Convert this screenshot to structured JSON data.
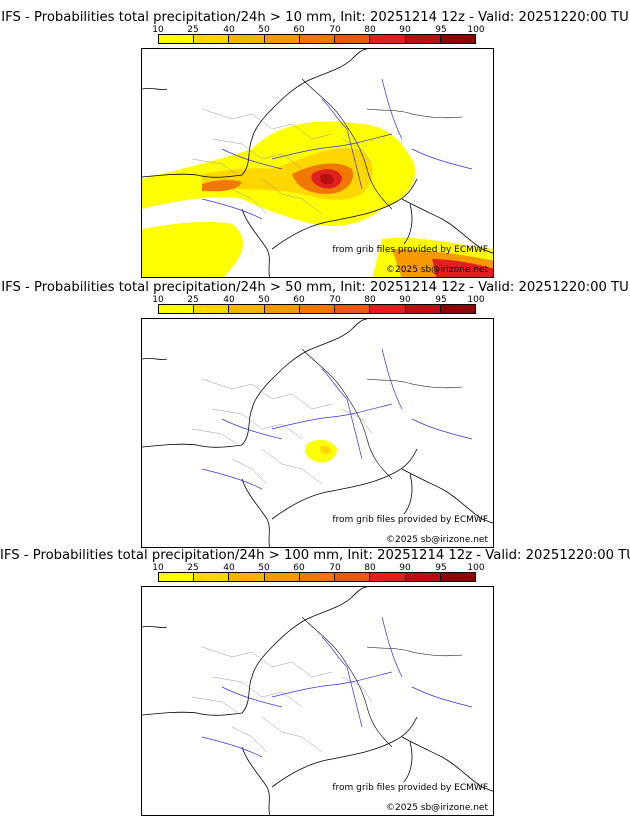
{
  "colorbar": {
    "labels": [
      "10",
      "25",
      "40",
      "50",
      "60",
      "70",
      "80",
      "90",
      "95",
      "100"
    ],
    "colors": [
      "#ffff00",
      "#ffd700",
      "#f4b400",
      "#f49a00",
      "#f07800",
      "#e85a10",
      "#e02020",
      "#b81010",
      "#8c0606",
      "#5c0000"
    ]
  },
  "panels": [
    {
      "title": "IFS - Probabilities total precipitation/24h > 10 mm, Init: 20251214 12z - Valid: 20251220:00 TU",
      "credit_source": "from grib files provided by ECMWF",
      "credit_copyright": "©2025 sb@irizone.net"
    },
    {
      "title": "IFS - Probabilities total precipitation/24h > 50 mm, Init: 20251214 12z - Valid: 20251220:00 TU",
      "credit_source": "from grib files provided by ECMWF",
      "credit_copyright": "©2025 sb@irizone.net"
    },
    {
      "title": "IFS - Probabilities total precipitation/24h > 100 mm, Init: 20251214 12z - Valid: 20251220:00 TU",
      "credit_source": "from grib files provided by ECMWF",
      "credit_copyright": "©2025 sb@irizone.net"
    }
  ]
}
